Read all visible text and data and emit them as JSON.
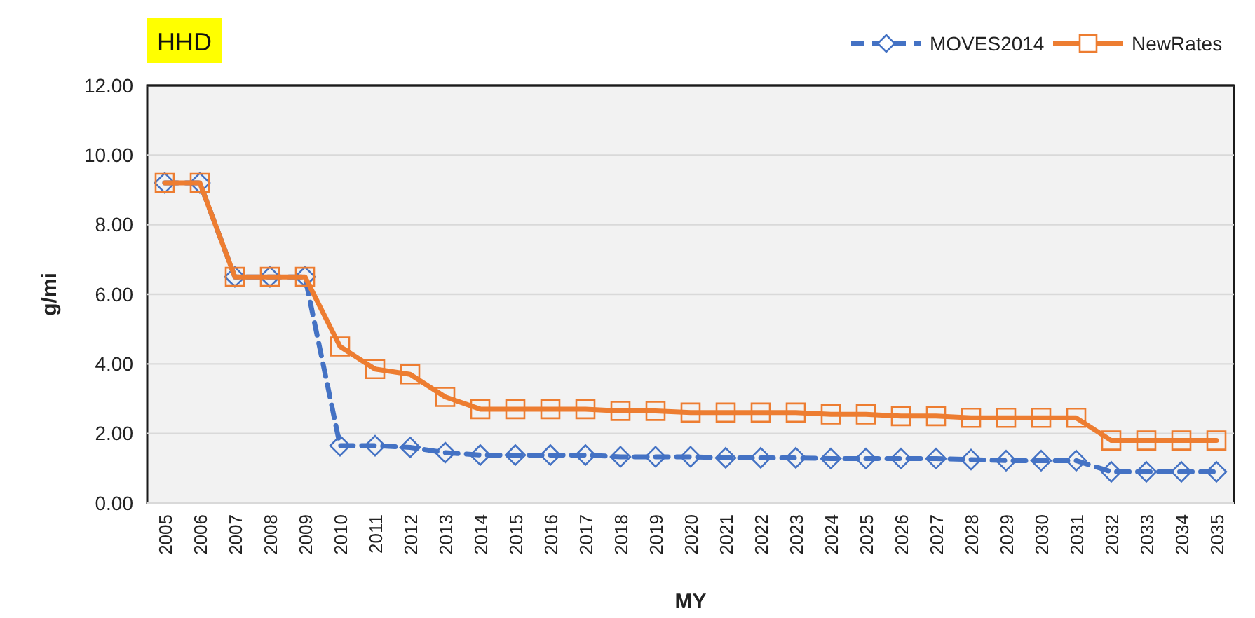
{
  "chart_data": {
    "type": "line",
    "title": "HHD",
    "xlabel": "MY",
    "ylabel": "g/mi",
    "categories": [
      "2005",
      "2006",
      "2007",
      "2008",
      "2009",
      "2010",
      "2011",
      "2012",
      "2013",
      "2014",
      "2015",
      "2016",
      "2017",
      "2018",
      "2019",
      "2020",
      "2021",
      "2022",
      "2023",
      "2024",
      "2025",
      "2026",
      "2027",
      "2028",
      "2029",
      "2030",
      "2031",
      "2032",
      "2033",
      "2034",
      "2035"
    ],
    "series": [
      {
        "name": "MOVES2014",
        "color": "#4472c4",
        "marker": "diamond",
        "line_style": "dashed",
        "values": [
          9.2,
          9.2,
          6.5,
          6.5,
          6.5,
          1.65,
          1.65,
          1.6,
          1.45,
          1.38,
          1.38,
          1.38,
          1.38,
          1.33,
          1.33,
          1.33,
          1.3,
          1.3,
          1.3,
          1.28,
          1.28,
          1.28,
          1.28,
          1.25,
          1.22,
          1.22,
          1.22,
          0.9,
          0.9,
          0.9,
          0.9
        ]
      },
      {
        "name": "NewRates",
        "color": "#ed7d31",
        "marker": "square",
        "line_style": "solid",
        "values": [
          9.2,
          9.2,
          6.5,
          6.5,
          6.5,
          4.5,
          3.85,
          3.7,
          3.05,
          2.7,
          2.7,
          2.7,
          2.7,
          2.65,
          2.65,
          2.6,
          2.6,
          2.6,
          2.6,
          2.55,
          2.55,
          2.5,
          2.5,
          2.45,
          2.45,
          2.45,
          2.45,
          1.8,
          1.8,
          1.8,
          1.8
        ]
      }
    ],
    "ylim": [
      0,
      12
    ],
    "yticks": [
      {
        "value": 0,
        "label": "0.00"
      },
      {
        "value": 2,
        "label": "2.00"
      },
      {
        "value": 4,
        "label": "4.00"
      },
      {
        "value": 6,
        "label": "6.00"
      },
      {
        "value": 8,
        "label": "8.00"
      },
      {
        "value": 10,
        "label": "10.00"
      },
      {
        "value": 12,
        "label": "12.00"
      }
    ],
    "grid": "y",
    "legend": "top right"
  }
}
